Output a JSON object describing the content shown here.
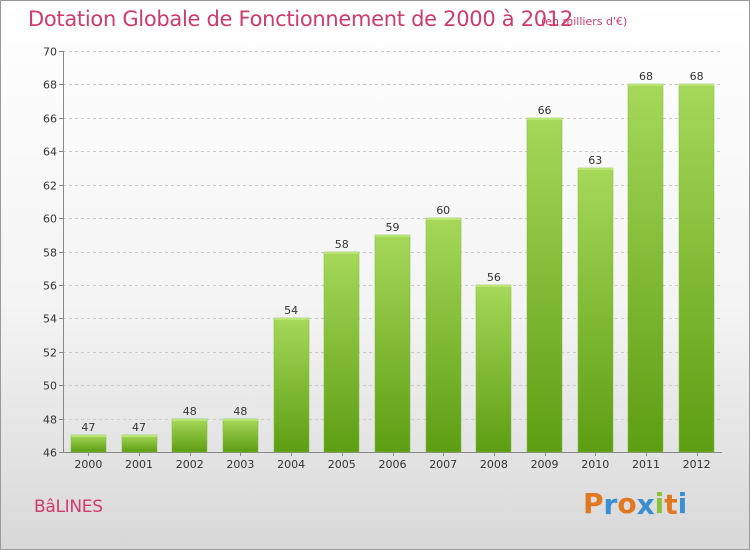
{
  "header": {
    "title": "Dotation Globale de Fonctionnement de 2000 à 2012",
    "subtitle": "(en milliers d'€)"
  },
  "footer": {
    "commune": "BâLINES",
    "logo_letters": [
      "P",
      "r",
      "o",
      "x",
      "i",
      "t",
      "i"
    ],
    "logo_colors": [
      "#e07820",
      "#3a8fd0",
      "#e07820",
      "#3a8fd0",
      "#8ac23a",
      "#e07820",
      "#3a8fd0"
    ]
  },
  "colors": {
    "title": "#d03a6e",
    "bar_top": "#a6d85a",
    "bar_bottom": "#5d9e12",
    "grid": "#cccccc"
  },
  "chart_data": {
    "type": "bar",
    "title": "Dotation Globale de Fonctionnement de 2000 à 2012",
    "subtitle": "(en milliers d'€)",
    "categories": [
      "2000",
      "2001",
      "2002",
      "2003",
      "2004",
      "2005",
      "2006",
      "2007",
      "2008",
      "2009",
      "2010",
      "2011",
      "2012"
    ],
    "values": [
      47,
      47,
      48,
      48,
      54,
      58,
      59,
      60,
      56,
      66,
      63,
      68,
      68
    ],
    "ylim": [
      46,
      70
    ],
    "yticks": [
      46,
      48,
      50,
      52,
      54,
      56,
      58,
      60,
      62,
      64,
      66,
      68,
      70
    ],
    "grid": true,
    "xlabel": "",
    "ylabel": ""
  }
}
